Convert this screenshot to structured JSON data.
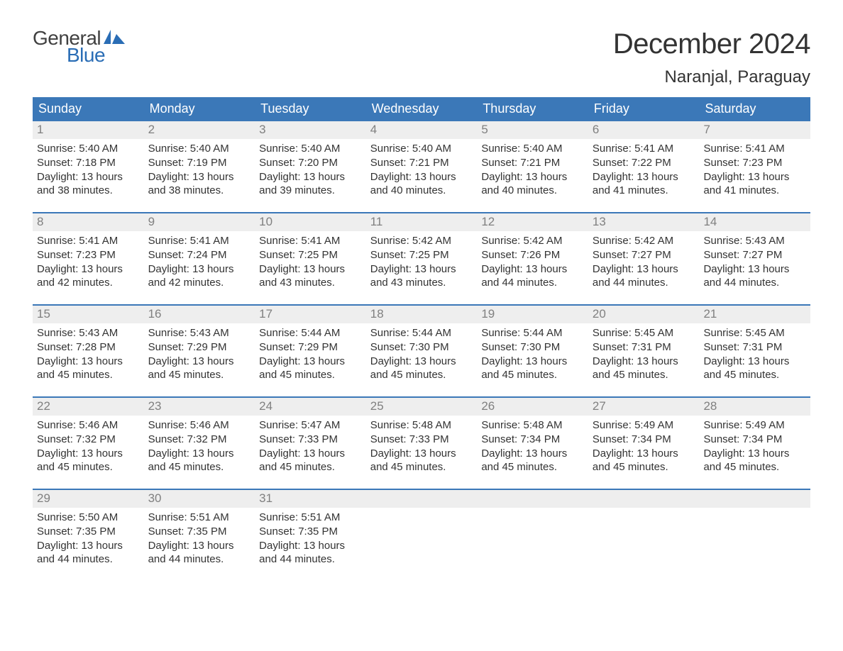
{
  "brand": {
    "general": "General",
    "blue": "Blue",
    "general_color": "#404040",
    "blue_color": "#2a6db5",
    "icon_color": "#2a6db5"
  },
  "title": "December 2024",
  "location": "Naranjal, Paraguay",
  "colors": {
    "header_bg": "#3b78b8",
    "header_text": "#ffffff",
    "daynum_bg": "#eeeeee",
    "daynum_text": "#808080",
    "body_text": "#333333",
    "row_divider": "#3b78b8",
    "page_bg": "#ffffff"
  },
  "typography": {
    "title_fontsize": 40,
    "location_fontsize": 24,
    "dayheader_fontsize": 18,
    "daynum_fontsize": 17,
    "body_fontsize": 15,
    "logo_fontsize": 28
  },
  "day_headers": [
    "Sunday",
    "Monday",
    "Tuesday",
    "Wednesday",
    "Thursday",
    "Friday",
    "Saturday"
  ],
  "weeks": [
    [
      {
        "num": "1",
        "sunrise": "Sunrise: 5:40 AM",
        "sunset": "Sunset: 7:18 PM",
        "day1": "Daylight: 13 hours",
        "day2": "and 38 minutes."
      },
      {
        "num": "2",
        "sunrise": "Sunrise: 5:40 AM",
        "sunset": "Sunset: 7:19 PM",
        "day1": "Daylight: 13 hours",
        "day2": "and 38 minutes."
      },
      {
        "num": "3",
        "sunrise": "Sunrise: 5:40 AM",
        "sunset": "Sunset: 7:20 PM",
        "day1": "Daylight: 13 hours",
        "day2": "and 39 minutes."
      },
      {
        "num": "4",
        "sunrise": "Sunrise: 5:40 AM",
        "sunset": "Sunset: 7:21 PM",
        "day1": "Daylight: 13 hours",
        "day2": "and 40 minutes."
      },
      {
        "num": "5",
        "sunrise": "Sunrise: 5:40 AM",
        "sunset": "Sunset: 7:21 PM",
        "day1": "Daylight: 13 hours",
        "day2": "and 40 minutes."
      },
      {
        "num": "6",
        "sunrise": "Sunrise: 5:41 AM",
        "sunset": "Sunset: 7:22 PM",
        "day1": "Daylight: 13 hours",
        "day2": "and 41 minutes."
      },
      {
        "num": "7",
        "sunrise": "Sunrise: 5:41 AM",
        "sunset": "Sunset: 7:23 PM",
        "day1": "Daylight: 13 hours",
        "day2": "and 41 minutes."
      }
    ],
    [
      {
        "num": "8",
        "sunrise": "Sunrise: 5:41 AM",
        "sunset": "Sunset: 7:23 PM",
        "day1": "Daylight: 13 hours",
        "day2": "and 42 minutes."
      },
      {
        "num": "9",
        "sunrise": "Sunrise: 5:41 AM",
        "sunset": "Sunset: 7:24 PM",
        "day1": "Daylight: 13 hours",
        "day2": "and 42 minutes."
      },
      {
        "num": "10",
        "sunrise": "Sunrise: 5:41 AM",
        "sunset": "Sunset: 7:25 PM",
        "day1": "Daylight: 13 hours",
        "day2": "and 43 minutes."
      },
      {
        "num": "11",
        "sunrise": "Sunrise: 5:42 AM",
        "sunset": "Sunset: 7:25 PM",
        "day1": "Daylight: 13 hours",
        "day2": "and 43 minutes."
      },
      {
        "num": "12",
        "sunrise": "Sunrise: 5:42 AM",
        "sunset": "Sunset: 7:26 PM",
        "day1": "Daylight: 13 hours",
        "day2": "and 44 minutes."
      },
      {
        "num": "13",
        "sunrise": "Sunrise: 5:42 AM",
        "sunset": "Sunset: 7:27 PM",
        "day1": "Daylight: 13 hours",
        "day2": "and 44 minutes."
      },
      {
        "num": "14",
        "sunrise": "Sunrise: 5:43 AM",
        "sunset": "Sunset: 7:27 PM",
        "day1": "Daylight: 13 hours",
        "day2": "and 44 minutes."
      }
    ],
    [
      {
        "num": "15",
        "sunrise": "Sunrise: 5:43 AM",
        "sunset": "Sunset: 7:28 PM",
        "day1": "Daylight: 13 hours",
        "day2": "and 45 minutes."
      },
      {
        "num": "16",
        "sunrise": "Sunrise: 5:43 AM",
        "sunset": "Sunset: 7:29 PM",
        "day1": "Daylight: 13 hours",
        "day2": "and 45 minutes."
      },
      {
        "num": "17",
        "sunrise": "Sunrise: 5:44 AM",
        "sunset": "Sunset: 7:29 PM",
        "day1": "Daylight: 13 hours",
        "day2": "and 45 minutes."
      },
      {
        "num": "18",
        "sunrise": "Sunrise: 5:44 AM",
        "sunset": "Sunset: 7:30 PM",
        "day1": "Daylight: 13 hours",
        "day2": "and 45 minutes."
      },
      {
        "num": "19",
        "sunrise": "Sunrise: 5:44 AM",
        "sunset": "Sunset: 7:30 PM",
        "day1": "Daylight: 13 hours",
        "day2": "and 45 minutes."
      },
      {
        "num": "20",
        "sunrise": "Sunrise: 5:45 AM",
        "sunset": "Sunset: 7:31 PM",
        "day1": "Daylight: 13 hours",
        "day2": "and 45 minutes."
      },
      {
        "num": "21",
        "sunrise": "Sunrise: 5:45 AM",
        "sunset": "Sunset: 7:31 PM",
        "day1": "Daylight: 13 hours",
        "day2": "and 45 minutes."
      }
    ],
    [
      {
        "num": "22",
        "sunrise": "Sunrise: 5:46 AM",
        "sunset": "Sunset: 7:32 PM",
        "day1": "Daylight: 13 hours",
        "day2": "and 45 minutes."
      },
      {
        "num": "23",
        "sunrise": "Sunrise: 5:46 AM",
        "sunset": "Sunset: 7:32 PM",
        "day1": "Daylight: 13 hours",
        "day2": "and 45 minutes."
      },
      {
        "num": "24",
        "sunrise": "Sunrise: 5:47 AM",
        "sunset": "Sunset: 7:33 PM",
        "day1": "Daylight: 13 hours",
        "day2": "and 45 minutes."
      },
      {
        "num": "25",
        "sunrise": "Sunrise: 5:48 AM",
        "sunset": "Sunset: 7:33 PM",
        "day1": "Daylight: 13 hours",
        "day2": "and 45 minutes."
      },
      {
        "num": "26",
        "sunrise": "Sunrise: 5:48 AM",
        "sunset": "Sunset: 7:34 PM",
        "day1": "Daylight: 13 hours",
        "day2": "and 45 minutes."
      },
      {
        "num": "27",
        "sunrise": "Sunrise: 5:49 AM",
        "sunset": "Sunset: 7:34 PM",
        "day1": "Daylight: 13 hours",
        "day2": "and 45 minutes."
      },
      {
        "num": "28",
        "sunrise": "Sunrise: 5:49 AM",
        "sunset": "Sunset: 7:34 PM",
        "day1": "Daylight: 13 hours",
        "day2": "and 45 minutes."
      }
    ],
    [
      {
        "num": "29",
        "sunrise": "Sunrise: 5:50 AM",
        "sunset": "Sunset: 7:35 PM",
        "day1": "Daylight: 13 hours",
        "day2": "and 44 minutes."
      },
      {
        "num": "30",
        "sunrise": "Sunrise: 5:51 AM",
        "sunset": "Sunset: 7:35 PM",
        "day1": "Daylight: 13 hours",
        "day2": "and 44 minutes."
      },
      {
        "num": "31",
        "sunrise": "Sunrise: 5:51 AM",
        "sunset": "Sunset: 7:35 PM",
        "day1": "Daylight: 13 hours",
        "day2": "and 44 minutes."
      },
      null,
      null,
      null,
      null
    ]
  ]
}
